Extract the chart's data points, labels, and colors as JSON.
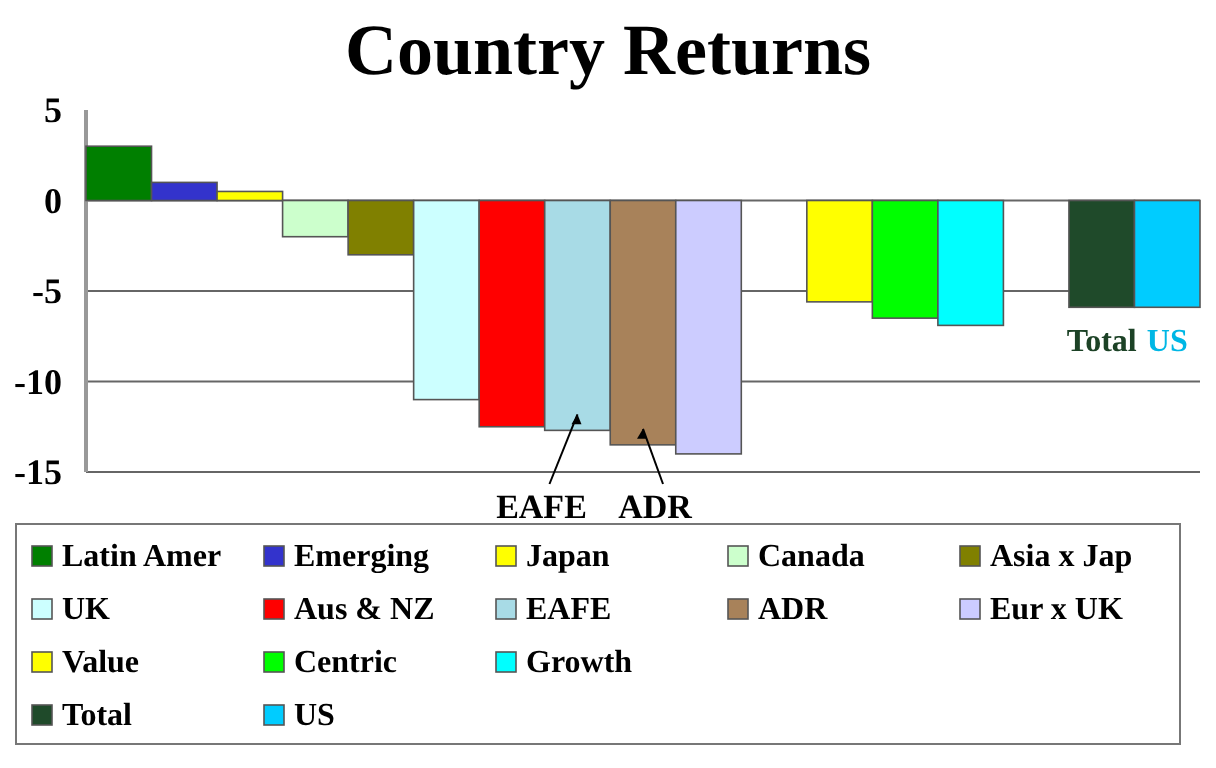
{
  "chart_data": {
    "type": "bar",
    "title": "Country Returns",
    "stacked": true,
    "categories": [
      null,
      null,
      null,
      null,
      null,
      null,
      null,
      null,
      null,
      null,
      null,
      null,
      null,
      null,
      null,
      null,
      null
    ],
    "series": [
      {
        "name": "Latin Amer",
        "color": "#007f00",
        "values": [
          3,
          null,
          null,
          null,
          null,
          null,
          null,
          null,
          null,
          null,
          null,
          null,
          null,
          null,
          null,
          null,
          null
        ]
      },
      {
        "name": "Emerging",
        "color": "#3333cc",
        "values": [
          null,
          1,
          null,
          null,
          null,
          null,
          null,
          null,
          null,
          null,
          null,
          null,
          null,
          null,
          null,
          null,
          null
        ]
      },
      {
        "name": "Japan",
        "color": "#ffff00",
        "values": [
          null,
          null,
          0.5,
          null,
          null,
          null,
          null,
          null,
          null,
          null,
          null,
          null,
          null,
          null,
          null,
          null,
          null
        ]
      },
      {
        "name": "Canada",
        "color": "#ccffcc",
        "values": [
          null,
          null,
          null,
          -2,
          null,
          null,
          null,
          null,
          null,
          null,
          null,
          null,
          null,
          null,
          null,
          null,
          null
        ]
      },
      {
        "name": "Asia x Jap",
        "color": "#808000",
        "values": [
          null,
          null,
          null,
          null,
          -3,
          null,
          null,
          null,
          null,
          null,
          null,
          null,
          null,
          null,
          null,
          null,
          null
        ]
      },
      {
        "name": "UK",
        "color": "#ccffff",
        "values": [
          null,
          null,
          null,
          null,
          null,
          -11,
          null,
          null,
          null,
          null,
          null,
          null,
          null,
          null,
          null,
          null,
          null
        ]
      },
      {
        "name": "Aus & NZ",
        "color": "#ff0000",
        "values": [
          null,
          null,
          null,
          null,
          null,
          null,
          -12.5,
          null,
          null,
          null,
          null,
          null,
          null,
          null,
          null,
          null,
          null
        ]
      },
      {
        "name": "EAFE",
        "color": "#a8dbe6",
        "values": [
          null,
          null,
          null,
          null,
          null,
          null,
          null,
          -12.7,
          null,
          null,
          null,
          null,
          null,
          null,
          null,
          null,
          null
        ]
      },
      {
        "name": "ADR",
        "color": "#a8825a",
        "values": [
          null,
          null,
          null,
          null,
          null,
          null,
          null,
          null,
          -13.5,
          null,
          null,
          null,
          null,
          null,
          null,
          null,
          null
        ]
      },
      {
        "name": "Eur x UK",
        "color": "#ccccff",
        "values": [
          null,
          null,
          null,
          null,
          null,
          null,
          null,
          null,
          null,
          -14,
          null,
          null,
          null,
          null,
          null,
          null,
          null
        ]
      },
      {
        "name": "Value",
        "color": "#ffff00",
        "values": [
          null,
          null,
          null,
          null,
          null,
          null,
          null,
          null,
          null,
          null,
          null,
          -5.6,
          null,
          null,
          null,
          null,
          null
        ]
      },
      {
        "name": "Centric",
        "color": "#00ff00",
        "values": [
          null,
          null,
          null,
          null,
          null,
          null,
          null,
          null,
          null,
          null,
          null,
          null,
          -6.5,
          null,
          null,
          null,
          null
        ]
      },
      {
        "name": "Growth",
        "color": "#00ffff",
        "values": [
          null,
          null,
          null,
          null,
          null,
          null,
          null,
          null,
          null,
          null,
          null,
          null,
          null,
          -6.9,
          null,
          null,
          null
        ]
      },
      {
        "name": "Total",
        "color": "#1f4a2a",
        "values": [
          null,
          null,
          null,
          null,
          null,
          null,
          null,
          null,
          null,
          null,
          null,
          null,
          null,
          null,
          null,
          -5.9,
          null
        ]
      },
      {
        "name": "US",
        "color": "#00ccff",
        "values": [
          null,
          null,
          null,
          null,
          null,
          null,
          null,
          null,
          null,
          null,
          null,
          null,
          null,
          null,
          null,
          null,
          -5.9
        ]
      }
    ],
    "ylim": [
      -15,
      5
    ],
    "yticks": [
      -15,
      -10,
      -5,
      0,
      5
    ],
    "grid": "y",
    "legend": "bottom",
    "annotations": [
      {
        "text": "EAFE",
        "y": -12.7
      },
      {
        "text": "ADR",
        "y": -13.5
      },
      {
        "text": "Total",
        "y": -5.9
      },
      {
        "text": "US",
        "y": -5.9
      }
    ]
  }
}
